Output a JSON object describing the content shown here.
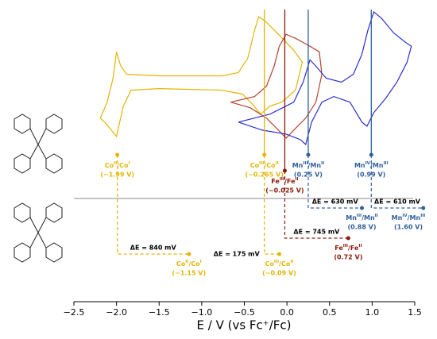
{
  "chart_data": {
    "type": "cv",
    "xlabel": "E / V (vs Fc⁺/Fc)",
    "xlim": [
      -2.5,
      1.5
    ],
    "xticks": [
      {
        "value": -2.5,
        "label": "−2.5"
      },
      {
        "value": -2,
        "label": "−2.0"
      },
      {
        "value": -1.5,
        "label": "−1.5"
      },
      {
        "value": -1,
        "label": "−1.0"
      },
      {
        "value": -0.5,
        "label": "−0.5"
      },
      {
        "value": 0,
        "label": "0.0"
      },
      0.5,
      {
        "value": 1,
        "label": "1.0"
      },
      1.5
    ],
    "series": [
      {
        "color": "#e3b505",
        "x": [
          -2.19,
          -2.11,
          -2.04,
          -2.0,
          -1.95,
          -1.88,
          -1.5,
          -0.76,
          -0.57,
          -0.46,
          -0.38,
          -0.33,
          -0.24,
          -0.1,
          0.08,
          0.18,
          0.1,
          -0.06,
          -0.2,
          -0.31,
          -0.4,
          -0.52,
          -0.76,
          -1.5,
          -1.83,
          -1.92,
          -2.0,
          -2.06,
          -2.14,
          -2.19
        ],
        "values": [
          55,
          75,
          105,
          138,
          120,
          110,
          108,
          108,
          112,
          130,
          165,
          182,
          175,
          160,
          140,
          125,
          90,
          75,
          70,
          60,
          72,
          85,
          90,
          92,
          90,
          70,
          32,
          40,
          50,
          55
        ]
      },
      {
        "color": "#b5452f",
        "x": [
          -0.66,
          -0.38,
          -0.24,
          -0.15,
          -0.09,
          -0.01,
          0.1,
          0.27,
          0.38,
          0.41,
          0.34,
          0.22,
          0.08,
          -0.01,
          -0.1,
          -0.24,
          -0.43,
          -0.66
        ],
        "values": [
          75,
          82,
          95,
          120,
          145,
          160,
          155,
          145,
          138,
          110,
          75,
          55,
          40,
          30,
          40,
          55,
          68,
          75
        ]
      },
      {
        "color": "#2a2fd0",
        "x": [
          -0.57,
          -0.2,
          0.08,
          0.19,
          0.27,
          0.34,
          0.46,
          0.64,
          0.78,
          0.88,
          0.95,
          1.02,
          1.11,
          1.25,
          1.39,
          1.46,
          1.41,
          1.29,
          1.16,
          1.02,
          0.94,
          0.88,
          0.74,
          0.55,
          0.41,
          0.29,
          0.22,
          0.16,
          -0.01,
          -0.29,
          -0.57
        ],
        "values": [
          50,
          60,
          75,
          100,
          128,
          120,
          105,
          100,
          110,
          135,
          165,
          188,
          180,
          162,
          150,
          145,
          125,
          100,
          80,
          62,
          45,
          50,
          75,
          82,
          75,
          50,
          22,
          28,
          35,
          40,
          50
        ]
      }
    ],
    "couples": [
      {
        "color": "#e3b505",
        "label": [
          "Co",
          "II",
          "/Co",
          "I"
        ],
        "top": {
          "x": -1.99,
          "label": "(−1.99 V)"
        },
        "bottom": {
          "x": -1.15,
          "label": "(−1.15 V)"
        },
        "shift": "ΔE = 840 mV"
      },
      {
        "color": "#e3b505",
        "label": [
          "Co",
          "III",
          "/Co",
          "II"
        ],
        "top": {
          "x": -0.265,
          "label": "(−0.265 V)"
        },
        "bottom": {
          "x": -0.09,
          "label": "(−0.09 V)"
        },
        "shift": "ΔE = 175 mV"
      },
      {
        "color": "#8b1a0a",
        "label": [
          "Fe",
          "III",
          "/Fe",
          "II"
        ],
        "top": {
          "x": -0.025,
          "label": "(−0.025 V)"
        },
        "bottom": {
          "x": 0.72,
          "label": "(0.72 V)"
        },
        "shift": "ΔE = 745 mV"
      },
      {
        "color": "#2f5f9a",
        "label": [
          "Mn",
          "III",
          "/Mn",
          "II"
        ],
        "top": {
          "x": 0.25,
          "label": "(0.25 V)"
        },
        "bottom": {
          "x": 0.88,
          "label": "(0.88 V)"
        },
        "shift": "ΔE = 630 mV"
      },
      {
        "color": "#2f5f9a",
        "label": [
          "Mn",
          "IV",
          "/Mn",
          "III"
        ],
        "top": {
          "x": 0.99,
          "label": "(0.99 V)"
        },
        "bottom": {
          "x": 1.6,
          "label": "(1.60 V)"
        },
        "shift": "ΔE = 610 mV"
      }
    ]
  }
}
